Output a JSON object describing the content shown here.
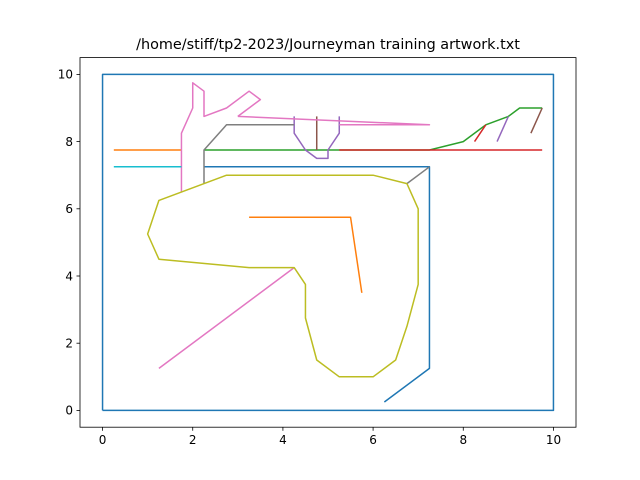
{
  "chart_data": {
    "type": "line",
    "title": "/home/stiff/tp2-2023/Journeyman training artwork.txt",
    "xlabel": "",
    "ylabel": "",
    "xlim": [
      -0.5,
      10.5
    ],
    "ylim": [
      -0.5,
      10.5
    ],
    "xticks": [
      0,
      2,
      4,
      6,
      8,
      10
    ],
    "yticks": [
      0,
      2,
      4,
      6,
      8,
      10
    ],
    "xtick_labels": [
      "0",
      "2",
      "4",
      "6",
      "8",
      "10"
    ],
    "ytick_labels": [
      "0",
      "2",
      "4",
      "6",
      "8",
      "10"
    ],
    "grid": false,
    "series": [
      {
        "color": "#1f77b4",
        "x": [
          0,
          10,
          10,
          0,
          0
        ],
        "y": [
          0,
          0,
          10,
          10,
          0
        ]
      },
      {
        "color": "#1f77b4",
        "x": [
          6.25,
          7.25,
          7.25,
          2.25
        ],
        "y": [
          0.25,
          1.25,
          7.25,
          7.25
        ]
      },
      {
        "color": "#ff7f0e",
        "x": [
          0.25,
          1.75
        ],
        "y": [
          7.75,
          7.75
        ]
      },
      {
        "color": "#ff7f0e",
        "x": [
          3.25,
          5.5,
          5.75
        ],
        "y": [
          5.75,
          5.75,
          3.5
        ]
      },
      {
        "color": "#2ca02c",
        "x": [
          2.25,
          7.25,
          8.0,
          8.5,
          9.0,
          9.25,
          9.75
        ],
        "y": [
          7.75,
          7.75,
          8.0,
          8.5,
          8.75,
          9.0,
          9.0
        ]
      },
      {
        "color": "#d62728",
        "x": [
          5.25,
          9.75
        ],
        "y": [
          7.75,
          7.75
        ]
      },
      {
        "color": "#d62728",
        "x": [
          8.25,
          8.5
        ],
        "y": [
          8.0,
          8.5
        ]
      },
      {
        "color": "#9467bd",
        "x": [
          4.25,
          4.25,
          4.5,
          4.75,
          5.0,
          5.0,
          5.25,
          5.25
        ],
        "y": [
          8.75,
          8.25,
          7.75,
          7.5,
          7.5,
          7.75,
          8.25,
          8.75
        ]
      },
      {
        "color": "#9467bd",
        "x": [
          8.75,
          9.0
        ],
        "y": [
          8.0,
          8.75
        ]
      },
      {
        "color": "#8c564b",
        "x": [
          4.75,
          4.75
        ],
        "y": [
          7.75,
          8.75
        ]
      },
      {
        "color": "#8c564b",
        "x": [
          9.5,
          9.75
        ],
        "y": [
          8.25,
          9.0
        ]
      },
      {
        "color": "#e377c2",
        "x": [
          1.75,
          1.75,
          2.0,
          2.0,
          2.25,
          2.25,
          2.75,
          3.25,
          3.5,
          3.25,
          3.0
        ],
        "y": [
          6.5,
          8.25,
          9.0,
          9.75,
          9.5,
          8.75,
          9.0,
          9.5,
          9.25,
          9.0,
          8.75
        ]
      },
      {
        "color": "#e377c2",
        "x": [
          3.0,
          7.25,
          5.25
        ],
        "y": [
          8.75,
          8.5,
          8.5
        ]
      },
      {
        "color": "#e377c2",
        "x": [
          1.25,
          4.25
        ],
        "y": [
          1.25,
          4.25
        ]
      },
      {
        "color": "#7f7f7f",
        "x": [
          2.25,
          2.25,
          2.75,
          4.25
        ],
        "y": [
          6.75,
          7.75,
          8.5,
          8.5
        ]
      },
      {
        "color": "#7f7f7f",
        "x": [
          6.75,
          7.25
        ],
        "y": [
          6.75,
          7.25
        ]
      },
      {
        "color": "#bcbd22",
        "x": [
          6.75,
          7.0,
          7.0,
          6.75,
          6.5,
          6.0,
          5.25,
          4.75,
          4.5,
          4.5,
          4.25,
          3.25,
          1.25,
          1.0,
          1.25,
          2.75,
          6.0,
          6.75
        ],
        "y": [
          6.75,
          6.0,
          3.75,
          2.5,
          1.5,
          1.0,
          1.0,
          1.5,
          2.75,
          3.75,
          4.25,
          4.25,
          4.5,
          5.25,
          6.25,
          7.0,
          7.0,
          6.75
        ]
      },
      {
        "color": "#17becf",
        "x": [
          0.25,
          1.75
        ],
        "y": [
          7.25,
          7.25
        ]
      }
    ]
  }
}
